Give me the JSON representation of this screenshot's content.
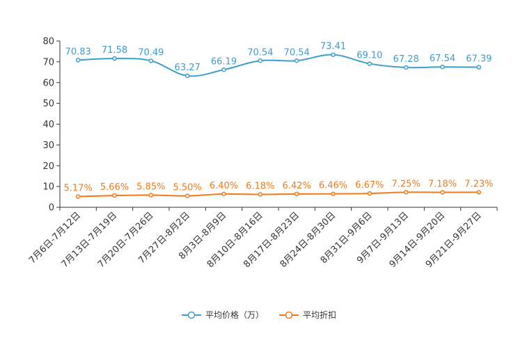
{
  "chart_data": {
    "type": "line",
    "categories": [
      "7月6日-7月12日",
      "7月13日-7月19日",
      "7月20日-7月26日",
      "7月27日-8月2日",
      "8月3日-8月9日",
      "8月10日-8月16日",
      "8月17日-8月23日",
      "8月24日-8月30日",
      "8月31日-9月6日",
      "9月7日-9月13日",
      "9月14日-9月20日",
      "9月21日-9月27日"
    ],
    "series": [
      {
        "name": "平均价格（万）",
        "color": "#3d9ccc",
        "values": [
          70.83,
          71.58,
          70.49,
          63.27,
          66.19,
          70.54,
          70.54,
          73.41,
          69.1,
          67.28,
          67.54,
          67.39
        ],
        "labels": [
          "70.83",
          "71.58",
          "70.49",
          "63.27",
          "66.19",
          "70.54",
          "70.54",
          "73.41",
          "69.10",
          "67.28",
          "67.54",
          "67.39"
        ]
      },
      {
        "name": "平均折扣",
        "color": "#f07a1a",
        "values": [
          5.17,
          5.66,
          5.85,
          5.5,
          6.4,
          6.18,
          6.42,
          6.46,
          6.67,
          7.25,
          7.18,
          7.23
        ],
        "labels": [
          "5.17%",
          "5.66%",
          "5.85%",
          "5.50%",
          "6.40%",
          "6.18%",
          "6.42%",
          "6.46%",
          "6.67%",
          "7.25%",
          "7.18%",
          "7.23%"
        ]
      }
    ],
    "ylim": [
      0,
      80
    ],
    "yticks": [
      "0",
      "10",
      "20",
      "30",
      "40",
      "50",
      "60",
      "70",
      "80"
    ],
    "xlabel": "",
    "ylabel": "",
    "legend_position": "bottom-center"
  }
}
